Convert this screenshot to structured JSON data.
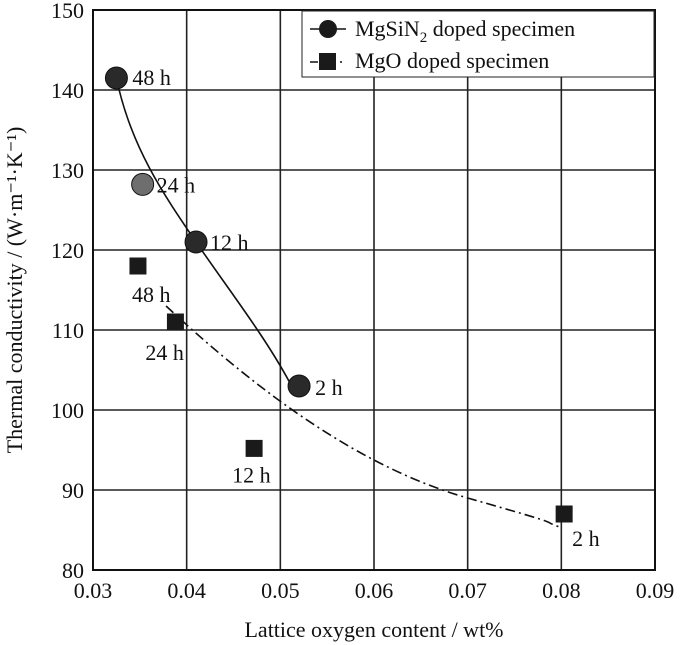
{
  "chart_data": {
    "type": "scatter",
    "xlabel": "Lattice oxygen content / wt%",
    "ylabel": "Thermal conductivity / (W·m⁻¹·K⁻¹)",
    "xlim": [
      0.03,
      0.09
    ],
    "ylim": [
      80,
      150
    ],
    "x_ticks": [
      "0.03",
      "0.04",
      "0.05",
      "0.06",
      "0.07",
      "0.08",
      "0.09"
    ],
    "y_ticks": [
      "80",
      "90",
      "100",
      "110",
      "120",
      "130",
      "140",
      "150"
    ],
    "grid": true,
    "legend_position": "top-right",
    "series": [
      {
        "name": "MgSiN2 doped specimen",
        "marker": "circle",
        "trend": "solid",
        "points": [
          {
            "x": 0.0325,
            "y": 141.5,
            "label": "48 h"
          },
          {
            "x": 0.0353,
            "y": 128.2,
            "label": "24 h"
          },
          {
            "x": 0.041,
            "y": 121.0,
            "label": "12 h"
          },
          {
            "x": 0.052,
            "y": 103.0,
            "label": "2 h"
          }
        ]
      },
      {
        "name": "MgO doped specimen",
        "marker": "square",
        "trend": "dashed",
        "points": [
          {
            "x": 0.0348,
            "y": 118.0,
            "label": "48 h"
          },
          {
            "x": 0.0388,
            "y": 111.0,
            "label": "24 h"
          },
          {
            "x": 0.0472,
            "y": 95.2,
            "label": "12 h"
          },
          {
            "x": 0.0803,
            "y": 87.0,
            "label": "2 h"
          }
        ]
      }
    ],
    "legend": [
      {
        "marker": "circle",
        "text": "MgSiN",
        "sub": "2",
        "rest": " doped specimen"
      },
      {
        "marker": "square",
        "text": "MgO doped specimen"
      }
    ]
  }
}
